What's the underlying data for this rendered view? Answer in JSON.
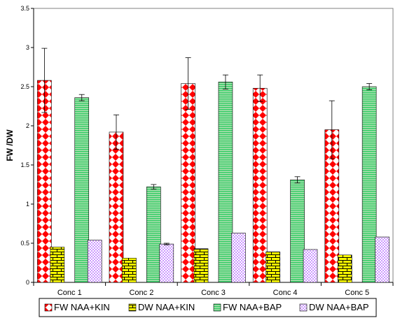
{
  "chart_data": {
    "type": "bar",
    "title": "",
    "xlabel": "",
    "ylabel": "FW /DW",
    "ylim": [
      0,
      3.5
    ],
    "yticks": [
      "0",
      "0.5",
      "1",
      "1.5",
      "2",
      "2.5",
      "3",
      "3.5"
    ],
    "categories": [
      "Conc 1",
      "Conc 2",
      "Conc 3",
      "Conc 4",
      "Conc 5"
    ],
    "series": [
      {
        "name": "FW NAA+KIN",
        "values": [
          2.58,
          1.92,
          2.54,
          2.48,
          1.95
        ],
        "errors": [
          0.41,
          0.22,
          0.33,
          0.17,
          0.37
        ],
        "pattern": "diamond",
        "color": "#ff0000",
        "alt_color": "#ffffff"
      },
      {
        "name": "DW NAA+KIN",
        "values": [
          0.45,
          0.31,
          0.43,
          0.39,
          0.35
        ],
        "errors": [
          0,
          0,
          0,
          0,
          0
        ],
        "pattern": "brick",
        "color": "#ffff00",
        "alt_color": "#000000"
      },
      {
        "name": "FW NAA+BAP",
        "values": [
          2.36,
          1.22,
          2.56,
          1.31,
          2.5
        ],
        "errors": [
          0.04,
          0.03,
          0.09,
          0.04,
          0.04
        ],
        "pattern": "hstripe",
        "color": "#33cc66",
        "alt_color": "#b3e0b3"
      },
      {
        "name": "DW NAA+BAP",
        "values": [
          0.54,
          0.49,
          0.63,
          0.42,
          0.58
        ],
        "errors": [
          0,
          0.01,
          0,
          0,
          0
        ],
        "pattern": "check",
        "color": "#cc99ff",
        "alt_color": "#ffffff"
      }
    ],
    "grid": false,
    "legend": "bottom"
  }
}
